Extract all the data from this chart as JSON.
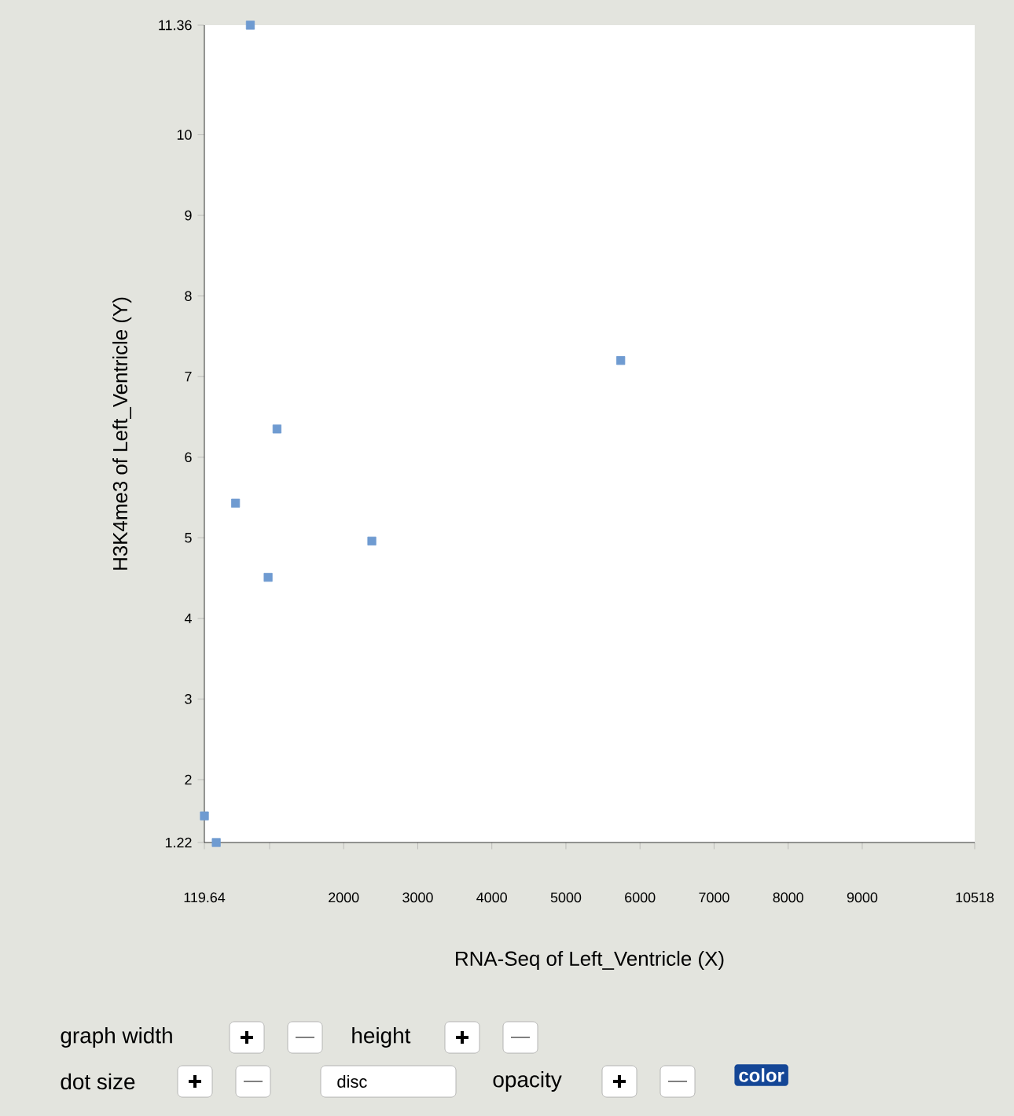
{
  "chart_data": {
    "type": "scatter",
    "xlabel": "RNA-Seq of Left_Ventricle (X)",
    "ylabel": "H3K4me3 of Left_Ventricle (Y)",
    "x": [
      740,
      1100,
      540,
      980,
      2380,
      5740,
      120,
      280
    ],
    "values": [
      11.36,
      6.35,
      5.43,
      4.51,
      4.96,
      7.2,
      1.55,
      1.22
    ],
    "color": "#6f9bd1",
    "marker": "square",
    "xlim": [
      119.64,
      10518
    ],
    "ylim": [
      1.22,
      11.36
    ],
    "xticks": [
      {
        "value": 119.64,
        "label": "119.64"
      },
      {
        "value": 1000,
        "label": null
      },
      2000,
      3000,
      4000,
      5000,
      6000,
      7000,
      8000,
      9000,
      {
        "value": 10518,
        "label": "10518"
      }
    ],
    "yticks": [
      1.22,
      2,
      3,
      4,
      5,
      6,
      7,
      8,
      9,
      10,
      11.36
    ],
    "annotations": [
      "graph width",
      "height",
      "dot size",
      "disc",
      "opacity",
      "color"
    ]
  }
}
